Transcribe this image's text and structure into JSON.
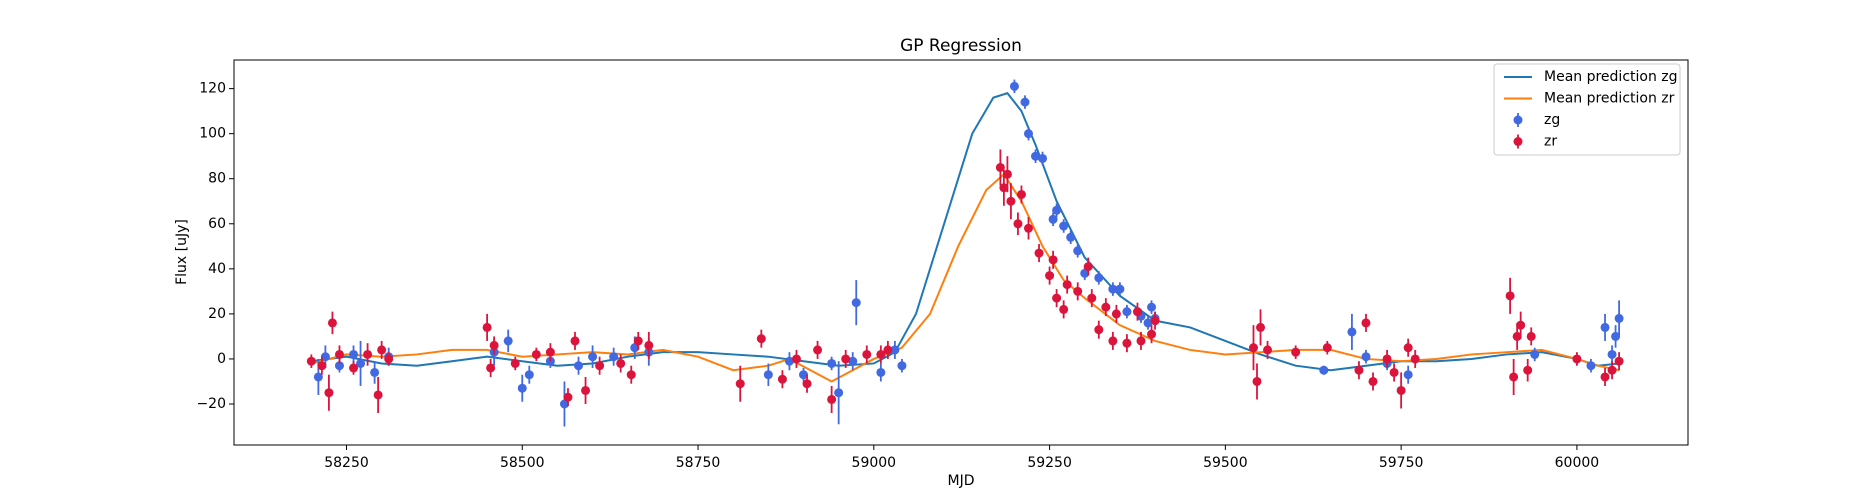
{
  "chart_data": {
    "type": "errorbar",
    "title": "GP Regression",
    "x_label": "MJD",
    "y_label": "Flux [uJy]",
    "xlim": [
      58090,
      60158
    ],
    "ylim": [
      -38.2,
      132.7
    ],
    "xticks": [
      58250,
      58500,
      58750,
      59000,
      59250,
      59500,
      59750,
      60000
    ],
    "yticks": [
      {
        "value": -20,
        "label": "−20"
      },
      0,
      20,
      40,
      60,
      80,
      100,
      120
    ],
    "legend": "upper right",
    "series": [
      {
        "name": "Mean prediction zg",
        "type": "line",
        "color": "#1f77b4",
        "x": [
          58200,
          58250,
          58300,
          58350,
          58400,
          58450,
          58500,
          58550,
          58600,
          58650,
          58700,
          58750,
          58800,
          58850,
          58900,
          58950,
          59000,
          59030,
          59060,
          59100,
          59140,
          59170,
          59190,
          59210,
          59230,
          59260,
          59300,
          59350,
          59400,
          59450,
          59500,
          59550,
          59600,
          59650,
          59700,
          59750,
          59800,
          59850,
          59900,
          59950,
          60000,
          60030,
          60060
        ],
        "values": [
          -1,
          1,
          -2,
          -3,
          -1,
          1,
          -1,
          -3,
          -2,
          1,
          3,
          3,
          2,
          1,
          -1,
          -3,
          -2,
          3,
          20,
          60,
          100,
          116,
          118,
          110,
          95,
          70,
          45,
          28,
          17,
          14,
          8,
          2,
          -3,
          -5,
          -3,
          -1,
          -1,
          0,
          2,
          3,
          0,
          -3,
          -2
        ]
      },
      {
        "name": "Mean prediction zr",
        "type": "line",
        "color": "#ff7f0e",
        "x": [
          58200,
          58250,
          58300,
          58350,
          58400,
          58450,
          58500,
          58550,
          58600,
          58650,
          58700,
          58750,
          58800,
          58850,
          58880,
          58910,
          58940,
          58970,
          59000,
          59040,
          59080,
          59120,
          59160,
          59185,
          59210,
          59240,
          59270,
          59300,
          59350,
          59400,
          59450,
          59500,
          59550,
          59600,
          59650,
          59700,
          59750,
          59800,
          59850,
          59900,
          59950,
          60000,
          60030,
          60060
        ],
        "values": [
          -2,
          2,
          1,
          2,
          4,
          4,
          1,
          2,
          3,
          2,
          4,
          1,
          -5,
          -3,
          0,
          -5,
          -10,
          -5,
          0,
          5,
          20,
          50,
          75,
          82,
          70,
          50,
          35,
          27,
          15,
          8,
          4,
          2,
          3,
          4,
          4,
          0,
          -1,
          0,
          2,
          3,
          4,
          0,
          -3,
          -5
        ]
      },
      {
        "name": "zg",
        "type": "errorbar",
        "color": "#4169e1",
        "x": [
          58210,
          58220,
          58240,
          58260,
          58270,
          58290,
          58310,
          58460,
          58480,
          58500,
          58510,
          58540,
          58560,
          58580,
          58600,
          58630,
          58660,
          58680,
          58850,
          58880,
          58900,
          58940,
          58950,
          58970,
          58975,
          59010,
          59030,
          59040,
          59200,
          59215,
          59220,
          59230,
          59240,
          59255,
          59260,
          59270,
          59280,
          59290,
          59300,
          59320,
          59340,
          59350,
          59360,
          59380,
          59390,
          59395,
          59400,
          59640,
          59680,
          59700,
          59730,
          59760,
          59940,
          60020,
          60040,
          60050,
          60060,
          60055
        ],
        "values": [
          -8,
          1,
          -3,
          2,
          -2,
          -6,
          1,
          3,
          8,
          -13,
          -7,
          -1,
          -20,
          -3,
          1,
          1,
          5,
          3,
          -7,
          -1,
          -7,
          -2,
          -15,
          -1,
          25,
          -6,
          4,
          -3,
          121,
          114,
          100,
          90,
          89,
          62,
          66,
          59,
          54,
          48,
          38,
          36,
          31,
          31,
          21,
          19,
          16,
          23,
          18,
          -5,
          12,
          1,
          -2,
          -7,
          2,
          -3,
          14,
          2,
          18,
          10
        ],
        "errors": [
          8,
          5,
          3,
          4,
          10,
          5,
          4,
          6,
          5,
          6,
          4,
          3,
          10,
          4,
          5,
          4,
          5,
          6,
          5,
          4,
          3,
          3,
          14,
          4,
          10,
          4,
          4,
          3,
          3,
          3,
          3,
          3,
          3,
          3,
          3,
          3,
          3,
          3,
          3,
          3,
          3,
          3,
          3,
          3,
          3,
          3,
          3,
          2,
          8,
          3,
          3,
          4,
          3,
          3,
          6,
          4,
          8,
          5
        ]
      },
      {
        "name": "zr",
        "type": "errorbar",
        "color": "#dc143c",
        "x": [
          58200,
          58215,
          58225,
          58230,
          58240,
          58260,
          58280,
          58295,
          58300,
          58310,
          58450,
          58455,
          58460,
          58490,
          58520,
          58540,
          58565,
          58575,
          58590,
          58610,
          58640,
          58655,
          58665,
          58680,
          58810,
          58840,
          58870,
          58890,
          58905,
          58920,
          58940,
          58960,
          58990,
          59010,
          59020,
          59180,
          59185,
          59190,
          59195,
          59205,
          59210,
          59220,
          59235,
          59250,
          59255,
          59260,
          59270,
          59275,
          59290,
          59305,
          59310,
          59320,
          59330,
          59340,
          59345,
          59360,
          59375,
          59380,
          59395,
          59400,
          59540,
          59545,
          59550,
          59560,
          59600,
          59645,
          59690,
          59700,
          59710,
          59730,
          59740,
          59750,
          59760,
          59770,
          59905,
          59910,
          59915,
          59920,
          59930,
          59935,
          60000,
          60040,
          60050,
          60060
        ],
        "values": [
          -1,
          -3,
          -15,
          16,
          2,
          -4,
          2,
          -16,
          4,
          0,
          14,
          -4,
          6,
          -2,
          2,
          3,
          -17,
          8,
          -14,
          -3,
          -2,
          -7,
          8,
          6,
          -11,
          9,
          -9,
          0,
          -11,
          4,
          -18,
          0,
          2,
          2,
          4,
          85,
          76,
          82,
          70,
          60,
          73,
          58,
          47,
          37,
          44,
          27,
          22,
          33,
          30,
          41,
          27,
          13,
          23,
          8,
          20,
          7,
          21,
          8,
          11,
          17,
          5,
          -10,
          14,
          4,
          3,
          5,
          -5,
          16,
          -10,
          0,
          -6,
          -14,
          5,
          0,
          28,
          -8,
          10,
          15,
          -5,
          10,
          0,
          -8,
          -5,
          -1
        ],
        "errors": [
          3,
          4,
          8,
          5,
          4,
          3,
          5,
          8,
          4,
          3,
          6,
          4,
          4,
          3,
          3,
          4,
          4,
          4,
          6,
          4,
          4,
          4,
          4,
          6,
          8,
          4,
          4,
          4,
          4,
          4,
          6,
          4,
          4,
          4,
          4,
          8,
          8,
          8,
          8,
          5,
          4,
          5,
          4,
          4,
          4,
          4,
          4,
          4,
          4,
          4,
          4,
          4,
          4,
          4,
          4,
          4,
          4,
          4,
          4,
          4,
          10,
          8,
          8,
          4,
          3,
          3,
          4,
          4,
          4,
          4,
          4,
          8,
          4,
          4,
          8,
          8,
          6,
          6,
          5,
          4,
          3,
          4,
          4,
          4
        ]
      }
    ]
  }
}
